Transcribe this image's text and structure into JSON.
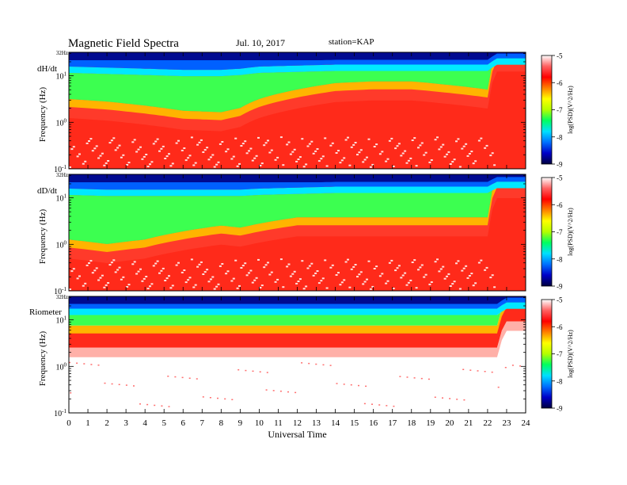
{
  "header": {
    "title": "Magnetic Field Spectra",
    "date": "Jul. 10, 2017",
    "station": "station=KAP"
  },
  "chart_data": {
    "type": "heatmap",
    "title": "Magnetic Field Spectra",
    "xlabel": "Universal Time",
    "x_ticks": [
      "0",
      "1",
      "2",
      "3",
      "4",
      "5",
      "6",
      "7",
      "8",
      "9",
      "10",
      "11",
      "12",
      "13",
      "14",
      "15",
      "16",
      "17",
      "18",
      "19",
      "20",
      "21",
      "22",
      "23",
      "24"
    ],
    "xlim": [
      0,
      24
    ],
    "colorbar": {
      "label": "log(PSD)(V^2/Hz)",
      "ticks": [
        "-5",
        "-6",
        "-7",
        "-8",
        "-9"
      ],
      "range": [
        -9,
        -5
      ],
      "colors": [
        "#000040",
        "#0000c8",
        "#0070ff",
        "#00e0ff",
        "#00ff60",
        "#b4ff00",
        "#ffff00",
        "#ff8000",
        "#ff0000",
        "#ff6060",
        "#ffffff"
      ]
    },
    "panels": [
      {
        "name": "dH/dt",
        "ylabel": "Frequency (Hz)",
        "ytick_top": "32Hz",
        "ytick_upper": "10^1",
        "ytick_mid": "10^0",
        "ytick_bottom": "10^-1",
        "ylim_hz": [
          0.1,
          32
        ],
        "boundaries": {
          "t": [
            0,
            2,
            4,
            6,
            8,
            9,
            10,
            12,
            14,
            16,
            18,
            20,
            22,
            22.5,
            23,
            24
          ],
          "blue_top_hz": [
            20,
            19,
            18,
            17,
            17,
            18,
            20,
            21,
            22,
            22,
            22,
            22,
            22,
            30,
            30,
            30
          ],
          "green_to_red_hz": [
            2.5,
            2.2,
            1.8,
            1.4,
            1.3,
            1.6,
            2.5,
            4,
            5.5,
            6,
            6,
            5,
            4,
            25,
            25,
            25
          ]
        }
      },
      {
        "name": "dD/dt",
        "ylabel": "Frequency (Hz)",
        "ytick_top": "32Hz",
        "ytick_upper": "10^1",
        "ytick_mid": "10^0",
        "ytick_bottom": "10^-1",
        "ylim_hz": [
          0.1,
          32
        ],
        "boundaries": {
          "t": [
            0,
            2,
            4,
            6,
            8,
            9,
            10,
            12,
            14,
            16,
            18,
            20,
            22,
            22.5,
            23,
            24
          ],
          "blue_top_hz": [
            20,
            19,
            19,
            19,
            19,
            19,
            20,
            21,
            22,
            22,
            22,
            22,
            22,
            28,
            28,
            28
          ],
          "green_to_red_hz": [
            1.0,
            0.8,
            1.0,
            1.5,
            2.0,
            1.8,
            2.2,
            3,
            3,
            3,
            3,
            3,
            3,
            20,
            20,
            20
          ]
        }
      },
      {
        "name": "Riometer",
        "ylabel": "Frequency (Hz)",
        "ytick_top": "32Hz",
        "ytick_upper": "10^1",
        "ytick_mid": "10^0",
        "ytick_bottom": "10^-1",
        "ylim_hz": [
          0.1,
          32
        ],
        "boundaries": {
          "t": [
            0,
            22.5,
            23,
            24
          ],
          "blue_top_hz": [
            22,
            22,
            30,
            30
          ],
          "green_to_red_hz": [
            6,
            6,
            22,
            22
          ]
        }
      }
    ]
  }
}
